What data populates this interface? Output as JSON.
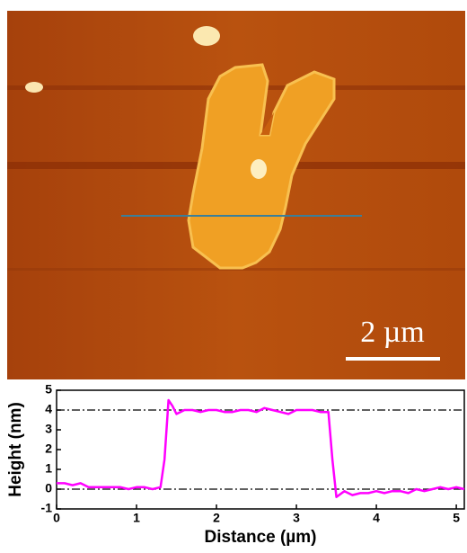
{
  "image": {
    "scale_bar_label": "2 µm"
  },
  "chart_data": {
    "type": "line",
    "x_label": "Distance (µm)",
    "y_label": "Height (nm)",
    "x": [
      0,
      0.1,
      0.2,
      0.3,
      0.4,
      0.5,
      0.6,
      0.7,
      0.8,
      0.9,
      1.0,
      1.1,
      1.2,
      1.3,
      1.35,
      1.4,
      1.45,
      1.5,
      1.6,
      1.7,
      1.8,
      1.9,
      2.0,
      2.1,
      2.2,
      2.3,
      2.4,
      2.5,
      2.6,
      2.7,
      2.8,
      2.9,
      3.0,
      3.1,
      3.2,
      3.3,
      3.4,
      3.45,
      3.5,
      3.6,
      3.7,
      3.8,
      3.9,
      4.0,
      4.1,
      4.2,
      4.3,
      4.4,
      4.5,
      4.6,
      4.7,
      4.8,
      4.9,
      5.0,
      5.1
    ],
    "values": [
      0.3,
      0.3,
      0.2,
      0.3,
      0.1,
      0.1,
      0.1,
      0.1,
      0.1,
      0.0,
      0.1,
      0.1,
      0.0,
      0.1,
      1.5,
      4.5,
      4.2,
      3.8,
      4.0,
      4.0,
      3.9,
      4.0,
      4.0,
      3.9,
      3.9,
      4.0,
      4.0,
      3.9,
      4.1,
      4.0,
      3.9,
      3.8,
      4.0,
      4.0,
      4.0,
      3.9,
      3.9,
      1.5,
      -0.4,
      -0.1,
      -0.3,
      -0.2,
      -0.2,
      -0.1,
      -0.2,
      -0.1,
      -0.1,
      -0.2,
      0.0,
      -0.1,
      0.0,
      0.1,
      0.0,
      0.1,
      0.0
    ],
    "color": "#ff00ff",
    "reference_lines": [
      0,
      4
    ],
    "xlim": [
      0,
      5.1
    ],
    "ylim": [
      -1,
      5
    ],
    "xticks": [
      0,
      1,
      2,
      3,
      4,
      5
    ],
    "yticks": [
      -1,
      0,
      1,
      2,
      3,
      4,
      5
    ]
  }
}
